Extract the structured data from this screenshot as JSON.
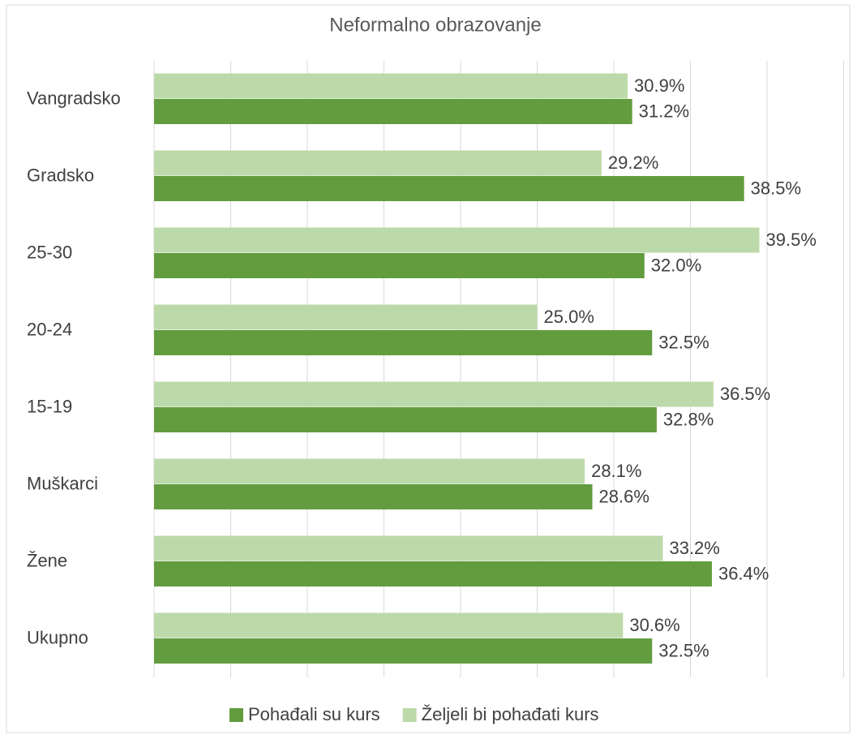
{
  "chart_data": {
    "type": "barh",
    "title": "Neformalno obrazovanje",
    "categories": [
      "Vangradsko",
      "Gradsko",
      "25-30",
      "20-24",
      "15-19",
      "Muškarci",
      "Žene",
      "Ukupno"
    ],
    "series": [
      {
        "name": "Pohađali su kurs",
        "color": "#629c3f",
        "values": [
          31.2,
          38.5,
          32.0,
          32.5,
          32.8,
          28.6,
          36.4,
          32.5
        ],
        "value_labels": [
          "31.2%",
          "38.5%",
          "32.0%",
          "32.5%",
          "32.8%",
          "28.6%",
          "36.4%",
          "32.5%"
        ]
      },
      {
        "name": "Željeli bi pohađati kurs",
        "color": "#bcdaa9",
        "values": [
          30.9,
          29.2,
          39.5,
          25.0,
          36.5,
          28.1,
          33.2,
          30.6
        ],
        "value_labels": [
          "30.9%",
          "29.2%",
          "39.5%",
          "25.0%",
          "36.5%",
          "28.1%",
          "33.2%",
          "30.6%"
        ]
      }
    ],
    "xlim": [
      0,
      45
    ],
    "xticks": [
      0,
      5,
      10,
      15,
      20,
      25,
      30,
      35,
      40,
      45
    ],
    "grid": true,
    "legend": "bottom"
  }
}
